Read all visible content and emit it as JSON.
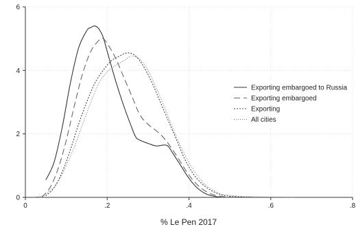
{
  "chart_data": {
    "type": "line",
    "title": "",
    "xlabel": "%  Le Pen 2017",
    "ylabel": "",
    "xlim": [
      0,
      0.8
    ],
    "ylim": [
      0,
      6
    ],
    "x_ticks": [
      {
        "value": 0,
        "label": "0"
      },
      {
        "value": 0.2,
        "label": ".2"
      },
      {
        "value": 0.4,
        "label": ".4"
      },
      {
        "value": 0.6,
        "label": ".6"
      },
      {
        "value": 0.8,
        "label": ".8"
      }
    ],
    "y_ticks": [
      {
        "value": 0,
        "label": "0"
      },
      {
        "value": 2,
        "label": "2"
      },
      {
        "value": 4,
        "label": "4"
      },
      {
        "value": 6,
        "label": "6"
      }
    ],
    "grid": true,
    "legend_position": "right",
    "series": [
      {
        "name": "Exporting embargoed to Russia",
        "color": "#333333",
        "dash": "",
        "x": [
          0.05,
          0.07,
          0.09,
          0.11,
          0.13,
          0.15,
          0.16,
          0.17,
          0.18,
          0.19,
          0.2,
          0.22,
          0.24,
          0.26,
          0.27,
          0.28,
          0.3,
          0.32,
          0.34,
          0.35,
          0.36,
          0.38,
          0.4,
          0.42,
          0.44,
          0.46,
          0.48
        ],
        "y": [
          0.55,
          1.1,
          2.2,
          3.6,
          4.7,
          5.25,
          5.35,
          5.4,
          5.3,
          5.05,
          4.6,
          3.7,
          2.9,
          2.2,
          1.9,
          1.8,
          1.7,
          1.62,
          1.65,
          1.6,
          1.4,
          1.0,
          0.6,
          0.3,
          0.12,
          0.04,
          0.0
        ]
      },
      {
        "name": "Exporting embargoed",
        "color": "#666666",
        "dash": "9 5",
        "x": [
          0.04,
          0.06,
          0.08,
          0.1,
          0.12,
          0.14,
          0.16,
          0.18,
          0.19,
          0.2,
          0.22,
          0.24,
          0.26,
          0.28,
          0.3,
          0.32,
          0.34,
          0.36,
          0.38,
          0.4,
          0.42,
          0.44,
          0.46,
          0.48,
          0.5,
          0.52
        ],
        "y": [
          0.0,
          0.3,
          0.9,
          1.8,
          2.9,
          3.9,
          4.6,
          4.95,
          5.0,
          4.85,
          4.4,
          3.8,
          3.2,
          2.6,
          2.3,
          2.1,
          1.85,
          1.5,
          1.1,
          0.7,
          0.4,
          0.2,
          0.08,
          0.03,
          0.01,
          0.0
        ]
      },
      {
        "name": "Exporting",
        "color": "#444444",
        "dash": "2 2",
        "x": [
          0.05,
          0.07,
          0.09,
          0.11,
          0.13,
          0.15,
          0.17,
          0.19,
          0.21,
          0.23,
          0.25,
          0.27,
          0.29,
          0.31,
          0.33,
          0.35,
          0.37,
          0.39,
          0.41,
          0.43,
          0.45,
          0.47,
          0.49,
          0.52,
          0.56
        ],
        "y": [
          0.05,
          0.3,
          0.8,
          1.5,
          2.3,
          3.0,
          3.6,
          4.0,
          4.3,
          4.45,
          4.55,
          4.45,
          4.1,
          3.6,
          3.0,
          2.4,
          1.8,
          1.2,
          0.75,
          0.45,
          0.25,
          0.12,
          0.05,
          0.02,
          0.0
        ]
      },
      {
        "name": "All cities",
        "color": "#777777",
        "dash": "1 2",
        "x": [
          0.02,
          0.04,
          0.06,
          0.08,
          0.1,
          0.12,
          0.14,
          0.16,
          0.18,
          0.2,
          0.22,
          0.24,
          0.26,
          0.28,
          0.3,
          0.32,
          0.34,
          0.36,
          0.38,
          0.4,
          0.42,
          0.44,
          0.46,
          0.48,
          0.52,
          0.56,
          0.6,
          0.66
        ],
        "y": [
          0.0,
          0.05,
          0.2,
          0.5,
          1.0,
          1.6,
          2.3,
          3.0,
          3.6,
          3.95,
          4.15,
          4.3,
          4.45,
          4.35,
          4.0,
          3.45,
          2.85,
          2.2,
          1.6,
          1.1,
          0.7,
          0.4,
          0.22,
          0.1,
          0.04,
          0.02,
          0.01,
          0.0
        ]
      }
    ]
  }
}
